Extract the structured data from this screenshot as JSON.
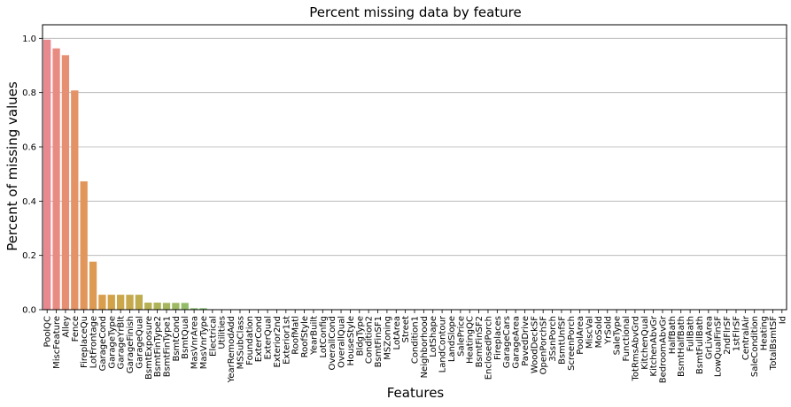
{
  "chart_data": {
    "type": "bar",
    "title": "Percent missing data by feature",
    "xlabel": "Features",
    "ylabel": "Percent of missing values",
    "ylim": [
      0,
      1.05
    ],
    "yticks": [
      "0.0",
      "0.2",
      "0.4",
      "0.6",
      "0.8",
      "1.0"
    ],
    "ytick_values": [
      0,
      0.2,
      0.4,
      0.6,
      0.8,
      1.0
    ],
    "grid": "horizontal",
    "categories": [
      "PoolQC",
      "MiscFeature",
      "Alley",
      "Fence",
      "FireplaceQu",
      "LotFrontage",
      "GarageCond",
      "GarageType",
      "GarageYrBlt",
      "GarageFinish",
      "GarageQual",
      "BsmtExposure",
      "BsmtFinType2",
      "BsmtFinType1",
      "BsmtCond",
      "BsmtQual",
      "MasVnrArea",
      "MasVnrType",
      "Electrical",
      "Utilities",
      "YearRemodAdd",
      "MSSubClass",
      "Foundation",
      "ExterCond",
      "ExterQual",
      "Exterior2nd",
      "Exterior1st",
      "RoofMatl",
      "RoofStyle",
      "YearBuilt",
      "LotConfig",
      "OverallCond",
      "OverallQual",
      "HouseStyle",
      "BldgType",
      "Condition2",
      "BsmtFinSF1",
      "MSZoning",
      "LotArea",
      "Street",
      "Condition1",
      "Neighborhood",
      "LotShape",
      "LandContour",
      "LandSlope",
      "SalePrice",
      "HeatingQC",
      "BsmtFinSF2",
      "EnclosedPorch",
      "Fireplaces",
      "GarageCars",
      "GarageArea",
      "PavedDrive",
      "WoodDeckSF",
      "OpenPorchSF",
      "3SsnPorch",
      "BsmtUnfSF",
      "ScreenPorch",
      "PoolArea",
      "MiscVal",
      "MoSold",
      "YrSold",
      "SaleType",
      "Functional",
      "TotRmsAbvGrd",
      "KitchenQual",
      "KitchenAbvGr",
      "BedroomAbvGr",
      "HalfBath",
      "BsmtHalfBath",
      "FullBath",
      "BsmtFullBath",
      "GrLivArea",
      "LowQualFinSF",
      "2ndFlrSF",
      "1stFlrSF",
      "CentralAir",
      "SaleCondition",
      "Heating",
      "TotalBsmtSF",
      "Id"
    ],
    "values": [
      0.995,
      0.963,
      0.938,
      0.808,
      0.473,
      0.177,
      0.055,
      0.055,
      0.055,
      0.055,
      0.055,
      0.026,
      0.026,
      0.025,
      0.025,
      0.025,
      0.0055,
      0.0055,
      0.0007,
      0,
      0,
      0,
      0,
      0,
      0,
      0,
      0,
      0,
      0,
      0,
      0,
      0,
      0,
      0,
      0,
      0,
      0,
      0,
      0,
      0,
      0,
      0,
      0,
      0,
      0,
      0,
      0,
      0,
      0,
      0,
      0,
      0,
      0,
      0,
      0,
      0,
      0,
      0,
      0,
      0,
      0,
      0,
      0,
      0,
      0,
      0,
      0,
      0,
      0,
      0,
      0,
      0,
      0,
      0,
      0,
      0,
      0,
      0,
      0,
      0,
      0
    ],
    "colors": [
      "#e8888f",
      "#e88c82",
      "#e78f72",
      "#e49366",
      "#e1965b",
      "#dd9a52",
      "#d89e4c",
      "#d2a249",
      "#cca64a",
      "#c5a94c",
      "#beac4f",
      "#b6b053",
      "#aeb357",
      "#a6b65c",
      "#9db961",
      "#94bc67",
      "#8bbf6d",
      "#82c273",
      "#78c47a",
      "#6fc781",
      "#66c988",
      "#5ecb90",
      "#57cd97",
      "#51ce9f",
      "#4ccfa6",
      "#49d0ad",
      "#48d1b4",
      "#49d1bb",
      "#4cd1c1",
      "#51d1c7",
      "#58d0cc",
      "#60cfd1",
      "#69cdd5",
      "#73cbd9",
      "#7dc8dc",
      "#87c5df",
      "#91c2e1",
      "#9bbfe3",
      "#a4bbe5",
      "#adb7e6",
      "#b6b3e7",
      "#bfafe7",
      "#c8abe7",
      "#d0a7e6",
      "#d7a3e5",
      "#dea0e3",
      "#e49de0",
      "#e99bdc",
      "#ec99d7",
      "#ee98d2",
      "#ef98cc",
      "#ef98c5",
      "#ee99be",
      "#ec9ab7",
      "#ea9baf",
      "#e79ca8",
      "#e49da0",
      "#e09d99",
      "#dc9e92",
      "#d89f8b",
      "#d3a085",
      "#cea17f",
      "#c9a27a",
      "#c3a376",
      "#bda573",
      "#b7a671",
      "#b0a770",
      "#a9a871",
      "#a2a973",
      "#9aaa76",
      "#92ab7a",
      "#8aac7f",
      "#82ac85",
      "#7aad8b",
      "#72ad92",
      "#6bae99",
      "#65aea0",
      "#60aea7",
      "#5caeae",
      "#5aaeb5",
      "#5aaebc"
    ]
  }
}
